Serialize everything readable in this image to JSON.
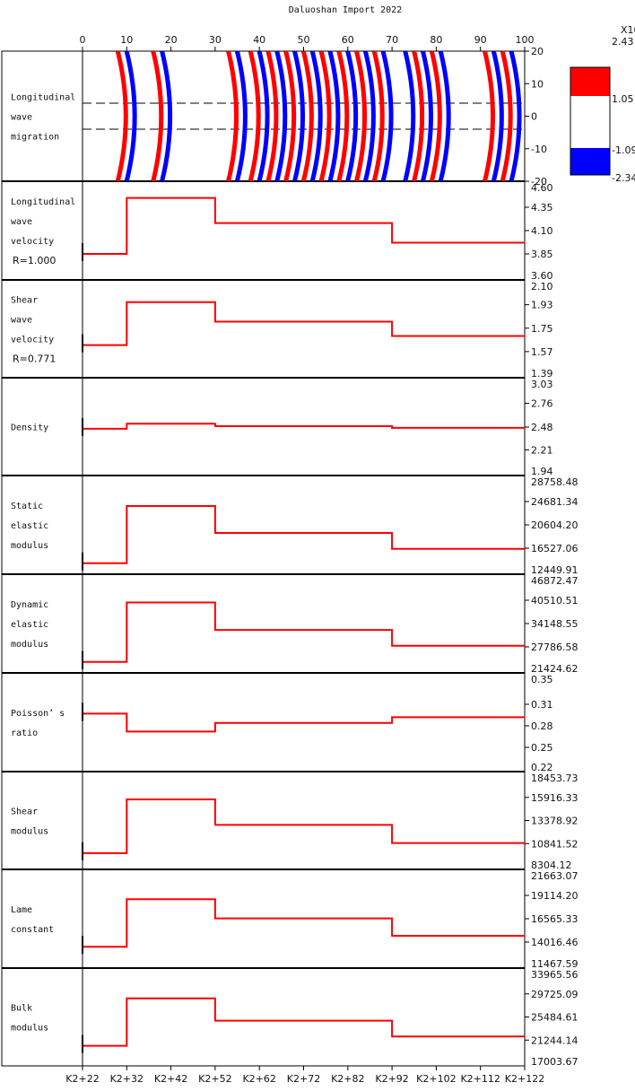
{
  "title": "Daluoshan Import 2022",
  "top_axis_ticks": [
    "0",
    "10",
    "20",
    "30",
    "40",
    "50",
    "60",
    "70",
    "80",
    "90",
    "100"
  ],
  "bottom_axis_ticks": [
    "K2+22",
    "K2+32",
    "K2+42",
    "K2+52",
    "K2+62",
    "K2+72",
    "K2+82",
    "K2+92",
    "K2+102",
    "K2+112",
    "K2+122"
  ],
  "colors": {
    "positive": "#ff0000",
    "negative": "#0000ff",
    "curve": "#ff0000",
    "axis": "#000000"
  },
  "colorbar": {
    "multiplier": "X10",
    "labels": [
      "2.43",
      "1.05",
      "-1.09",
      "-2.34"
    ],
    "colors": [
      "#ff0000",
      "#ffffff",
      "#0000ff"
    ]
  },
  "chart_data": [
    {
      "type": "heatmap",
      "label_lines": [
        "Longitudinal",
        "wave",
        "migration"
      ],
      "x_range": [
        0,
        100
      ],
      "y_ticks": [
        "20",
        "10",
        "0",
        "-10",
        "-20"
      ],
      "y_range": [
        -20,
        20
      ],
      "dashed_lines_y": [
        4,
        -4
      ],
      "wavefronts": [
        {
          "x": 10,
          "color": "red"
        },
        {
          "x": 12,
          "color": "blue"
        },
        {
          "x": 18,
          "color": "red"
        },
        {
          "x": 20,
          "color": "blue"
        },
        {
          "x": 35,
          "color": "red"
        },
        {
          "x": 37,
          "color": "blue"
        },
        {
          "x": 40,
          "color": "red"
        },
        {
          "x": 42,
          "color": "blue"
        },
        {
          "x": 44,
          "color": "red"
        },
        {
          "x": 46,
          "color": "blue"
        },
        {
          "x": 48,
          "color": "red"
        },
        {
          "x": 50,
          "color": "blue"
        },
        {
          "x": 52,
          "color": "red"
        },
        {
          "x": 54,
          "color": "blue"
        },
        {
          "x": 56,
          "color": "red"
        },
        {
          "x": 58,
          "color": "blue"
        },
        {
          "x": 60,
          "color": "red"
        },
        {
          "x": 62,
          "color": "blue"
        },
        {
          "x": 64,
          "color": "red"
        },
        {
          "x": 66,
          "color": "blue"
        },
        {
          "x": 68,
          "color": "red"
        },
        {
          "x": 70,
          "color": "blue"
        },
        {
          "x": 75,
          "color": "blue"
        },
        {
          "x": 77,
          "color": "red"
        },
        {
          "x": 79,
          "color": "blue"
        },
        {
          "x": 81,
          "color": "red"
        },
        {
          "x": 83,
          "color": "blue"
        },
        {
          "x": 93,
          "color": "red"
        },
        {
          "x": 95,
          "color": "blue"
        },
        {
          "x": 97,
          "color": "red"
        },
        {
          "x": 99,
          "color": "blue"
        }
      ]
    },
    {
      "type": "line",
      "label_lines": [
        "Longitudinal",
        "wave",
        "velocity",
        "R=1.000"
      ],
      "ylim": [
        3.6,
        4.6
      ],
      "y_ticks": [
        "4.60",
        "4.35",
        "4.10",
        "3.85",
        "3.60"
      ],
      "segments": [
        {
          "x": [
            0,
            10
          ],
          "y": 3.85
        },
        {
          "x": [
            10,
            30
          ],
          "y": 4.45
        },
        {
          "x": [
            30,
            70
          ],
          "y": 4.18
        },
        {
          "x": [
            70,
            100
          ],
          "y": 3.97
        }
      ]
    },
    {
      "type": "line",
      "label_lines": [
        "Shear",
        "wave",
        "velocity",
        "R=0.771"
      ],
      "ylim": [
        1.39,
        2.1
      ],
      "y_ticks": [
        "2.10",
        "1.93",
        "1.75",
        "1.57",
        "1.39"
      ],
      "segments": [
        {
          "x": [
            0,
            10
          ],
          "y": 1.62
        },
        {
          "x": [
            10,
            30
          ],
          "y": 1.95
        },
        {
          "x": [
            30,
            70
          ],
          "y": 1.8
        },
        {
          "x": [
            70,
            100
          ],
          "y": 1.69
        }
      ]
    },
    {
      "type": "line",
      "label_lines": [
        "Density"
      ],
      "ylim": [
        1.94,
        3.03
      ],
      "y_ticks": [
        "3.03",
        "2.76",
        "2.48",
        "2.21",
        "1.94"
      ],
      "segments": [
        {
          "x": [
            0,
            10
          ],
          "y": 2.46
        },
        {
          "x": [
            10,
            30
          ],
          "y": 2.52
        },
        {
          "x": [
            30,
            70
          ],
          "y": 2.49
        },
        {
          "x": [
            70,
            100
          ],
          "y": 2.47
        }
      ]
    },
    {
      "type": "line",
      "label_lines": [
        "Static",
        "elastic",
        "modulus"
      ],
      "ylim": [
        12449.91,
        28758.48
      ],
      "y_ticks": [
        "28758.48",
        "24681.34",
        "20604.20",
        "16527.06",
        "12449.91"
      ],
      "segments": [
        {
          "x": [
            0,
            10
          ],
          "y": 13900
        },
        {
          "x": [
            10,
            30
          ],
          "y": 23900
        },
        {
          "x": [
            30,
            70
          ],
          "y": 19200
        },
        {
          "x": [
            70,
            100
          ],
          "y": 16400
        }
      ]
    },
    {
      "type": "line",
      "label_lines": [
        "Dynamic",
        "elastic",
        "modulus"
      ],
      "ylim": [
        21424.62,
        46872.47
      ],
      "y_ticks": [
        "46872.47",
        "40510.51",
        "34148.55",
        "27786.58",
        "21424.62"
      ],
      "segments": [
        {
          "x": [
            0,
            10
          ],
          "y": 23700
        },
        {
          "x": [
            10,
            30
          ],
          "y": 39900
        },
        {
          "x": [
            30,
            70
          ],
          "y": 32400
        },
        {
          "x": [
            70,
            100
          ],
          "y": 28100
        }
      ]
    },
    {
      "type": "line",
      "label_lines": [
        "Poisson’ s",
        "ratio"
      ],
      "ylim": [
        0.22,
        0.35
      ],
      "y_ticks": [
        "0.35",
        "0.31",
        "0.28",
        "0.25",
        "0.22"
      ],
      "segments": [
        {
          "x": [
            0,
            10
          ],
          "y": 0.297
        },
        {
          "x": [
            10,
            30
          ],
          "y": 0.272
        },
        {
          "x": [
            30,
            70
          ],
          "y": 0.284
        },
        {
          "x": [
            70,
            100
          ],
          "y": 0.292
        }
      ]
    },
    {
      "type": "line",
      "label_lines": [
        "Shear",
        "modulus"
      ],
      "ylim": [
        8304.12,
        18453.73
      ],
      "y_ticks": [
        "18453.73",
        "15916.33",
        "13378.92",
        "10841.52",
        "8304.12"
      ],
      "segments": [
        {
          "x": [
            0,
            10
          ],
          "y": 9800
        },
        {
          "x": [
            10,
            30
          ],
          "y": 15700
        },
        {
          "x": [
            30,
            70
          ],
          "y": 12900
        },
        {
          "x": [
            70,
            100
          ],
          "y": 10900
        }
      ]
    },
    {
      "type": "line",
      "label_lines": [
        "Lame",
        "constant"
      ],
      "ylim": [
        11467.59,
        21663.07
      ],
      "y_ticks": [
        "21663.07",
        "19114.20",
        "16565.33",
        "14016.46",
        "11467.59"
      ],
      "segments": [
        {
          "x": [
            0,
            10
          ],
          "y": 13500
        },
        {
          "x": [
            10,
            30
          ],
          "y": 18700
        },
        {
          "x": [
            30,
            70
          ],
          "y": 16600
        },
        {
          "x": [
            70,
            100
          ],
          "y": 14700
        }
      ]
    },
    {
      "type": "line",
      "label_lines": [
        "Bulk",
        "modulus"
      ],
      "ylim": [
        17003.67,
        33965.56
      ],
      "y_ticks": [
        "33965.56",
        "29725.09",
        "25484.61",
        "21244.14",
        "17003.67"
      ],
      "segments": [
        {
          "x": [
            0,
            10
          ],
          "y": 20200
        },
        {
          "x": [
            10,
            30
          ],
          "y": 28900
        },
        {
          "x": [
            30,
            70
          ],
          "y": 24800
        },
        {
          "x": [
            70,
            100
          ],
          "y": 21900
        }
      ]
    }
  ]
}
